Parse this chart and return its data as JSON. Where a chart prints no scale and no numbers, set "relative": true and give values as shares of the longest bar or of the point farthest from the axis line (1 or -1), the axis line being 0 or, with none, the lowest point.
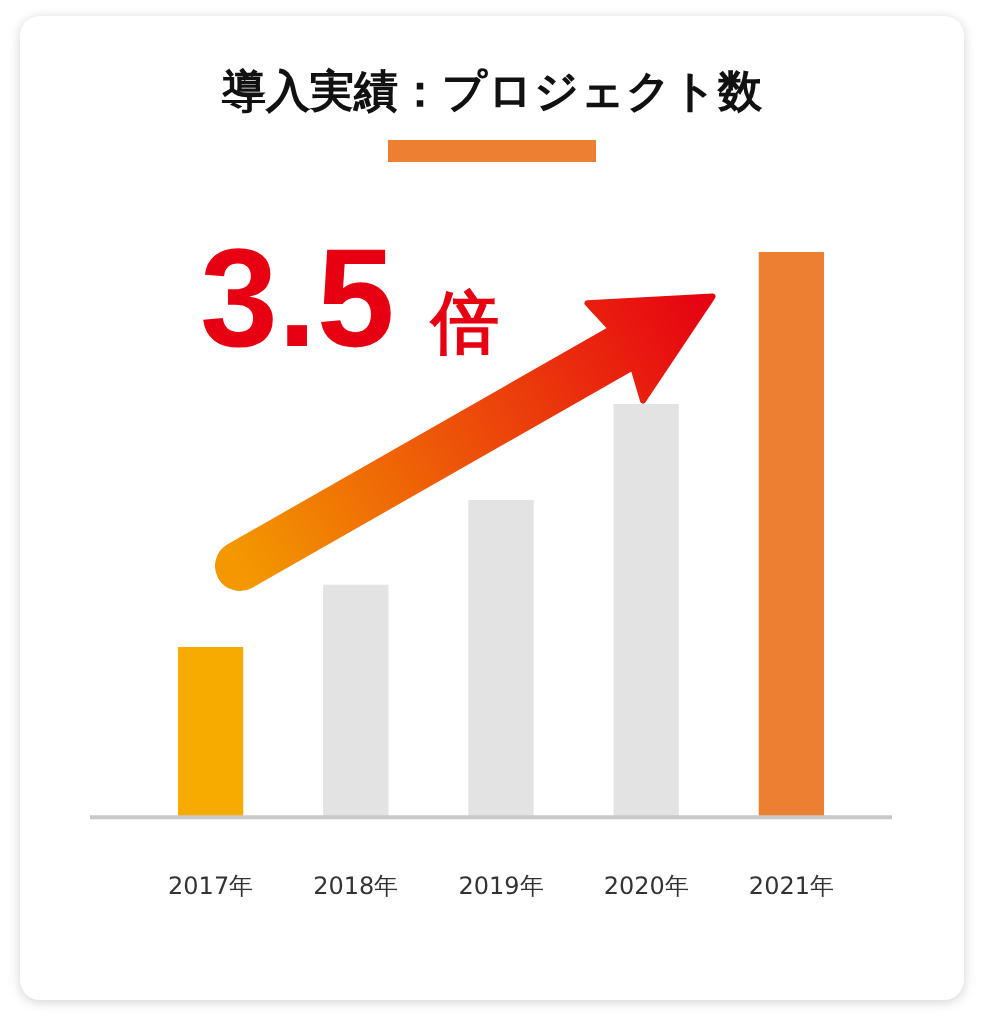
{
  "chart_data": {
    "type": "bar",
    "title": "導入実績：プロジェクト数",
    "categories": [
      "2017年",
      "2018年",
      "2019年",
      "2020年",
      "2021年"
    ],
    "values": [
      0.3,
      0.41,
      0.56,
      0.73,
      1
    ],
    "colors": [
      "#f7ab00",
      "#e3e3e3",
      "#e3e3e3",
      "#e3e3e3",
      "#ed7f33"
    ],
    "relative": true,
    "grid": false,
    "legend": false,
    "annotations": [
      "3.5 倍"
    ]
  }
}
